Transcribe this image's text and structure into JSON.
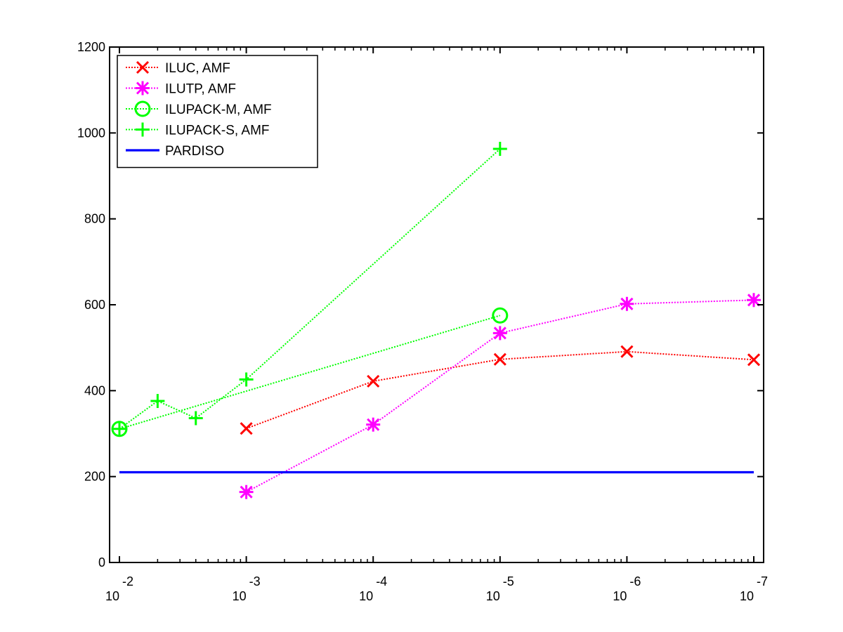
{
  "chart_data": {
    "type": "line",
    "title": "",
    "xlabel": "",
    "ylabel": "",
    "xscale": "log",
    "x_direction": "decreasing",
    "xlim": [
      0.01,
      1e-07
    ],
    "ylim": [
      0,
      1200
    ],
    "yticks": [
      0,
      200,
      400,
      600,
      800,
      1000,
      1200
    ],
    "xticks": [
      {
        "value": 0.01,
        "base": "10",
        "exp": "-2"
      },
      {
        "value": 0.001,
        "base": "10",
        "exp": "-3"
      },
      {
        "value": 0.0001,
        "base": "10",
        "exp": "-4"
      },
      {
        "value": 1e-05,
        "base": "10",
        "exp": "-5"
      },
      {
        "value": 1e-06,
        "base": "10",
        "exp": "-6"
      },
      {
        "value": 1e-07,
        "base": "10",
        "exp": "-7"
      }
    ],
    "grid": false,
    "legend_position": "top-left",
    "series": [
      {
        "name": "ILUC, AMF",
        "color": "#ff0000",
        "marker": "x",
        "line_style": "dotted",
        "x": [
          0.001,
          0.0001,
          1e-05,
          1e-06,
          1e-07
        ],
        "y": [
          312,
          422,
          473,
          491,
          472
        ]
      },
      {
        "name": "ILUTP, AMF",
        "color": "#ff00ff",
        "marker": "asterisk",
        "line_style": "dotted",
        "x": [
          0.001,
          0.0001,
          1e-05,
          1e-06,
          1e-07
        ],
        "y": [
          164,
          321,
          534,
          602,
          611
        ]
      },
      {
        "name": "ILUPACK-M, AMF",
        "color": "#00ff00",
        "marker": "circle",
        "line_style": "dotted",
        "x": [
          0.01,
          1e-05
        ],
        "y": [
          311,
          575
        ]
      },
      {
        "name": "ILUPACK-S, AMF",
        "color": "#00ff00",
        "marker": "plus",
        "line_style": "dotted",
        "x": [
          0.01,
          0.005,
          0.0025,
          0.001,
          1e-05
        ],
        "y": [
          311,
          376,
          336,
          426,
          963
        ]
      },
      {
        "name": "PARDISO",
        "color": "#0000ff",
        "marker": "none",
        "line_style": "solid",
        "x": [
          0.01,
          1e-07
        ],
        "y": [
          210,
          210
        ]
      }
    ]
  }
}
